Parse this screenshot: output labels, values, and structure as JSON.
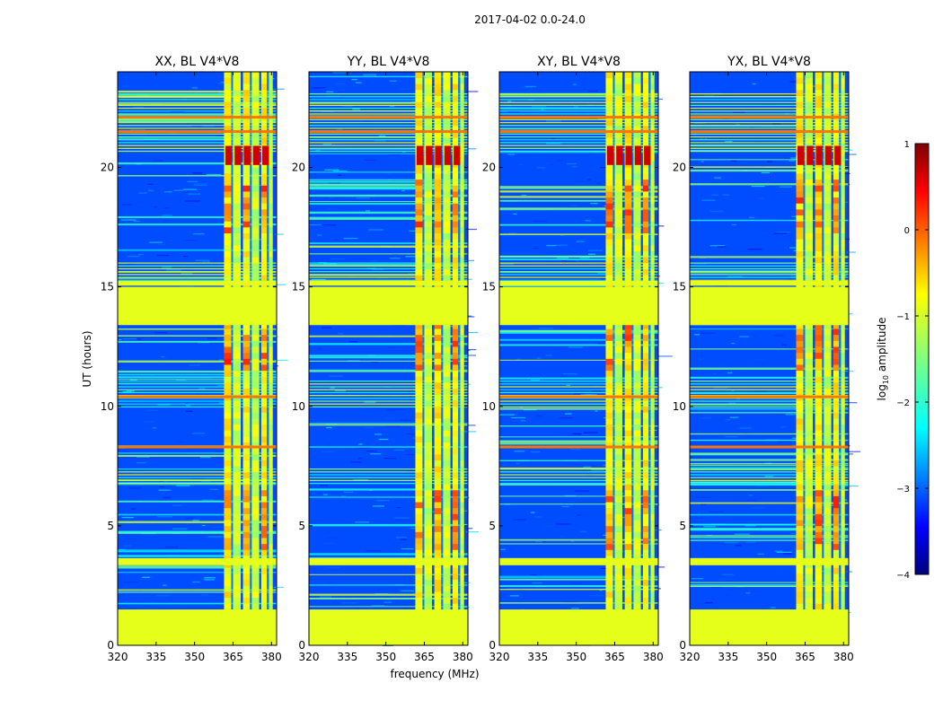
{
  "suptitle": "2017-04-02 0.0-24.0",
  "shared_ylabel": "UT (hours)",
  "shared_xlabel": "frequency (MHz)",
  "colorbar": {
    "label_main": "log",
    "label_sub": "10",
    "label_rest": " amplitude",
    "range": [
      -4,
      1
    ],
    "ticks": [
      1,
      0,
      -1,
      -2,
      -3,
      -4
    ],
    "tick_labels": [
      "1",
      "0",
      "−1",
      "−2",
      "−3",
      "−4"
    ],
    "colormap": "jet"
  },
  "chart_data": [
    {
      "type": "heatmap",
      "title": "XX, BL V4*V8",
      "xlim": [
        320,
        382
      ],
      "ylim": [
        0,
        24
      ],
      "xticks": [
        320,
        335,
        350,
        365,
        380
      ],
      "yticks": [
        0,
        5,
        10,
        15,
        20
      ],
      "xtick_labels": [
        "320",
        "335",
        "350",
        "365",
        "380"
      ],
      "ytick_labels": [
        "0",
        "5",
        "10",
        "15",
        "20"
      ],
      "background_log10_amplitude": -3.0,
      "rfi_band_mhz": [
        361.5,
        380.5
      ],
      "flagged_ut_ranges": [
        [
          0,
          1.5
        ],
        [
          13.4,
          15.0
        ]
      ],
      "flagged_value": -1.0,
      "bright_rows_ut": [
        8.3,
        10.4,
        21.5,
        22.1
      ]
    },
    {
      "type": "heatmap",
      "title": "YY, BL V4*V8",
      "xlim": [
        320,
        382
      ],
      "ylim": [
        0,
        24
      ],
      "xticks": [
        320,
        335,
        350,
        365,
        380
      ],
      "yticks": [
        0,
        5,
        10,
        15,
        20
      ],
      "xtick_labels": [
        "320",
        "335",
        "350",
        "365",
        "380"
      ],
      "ytick_labels": [
        "0",
        "5",
        "10",
        "15",
        "20"
      ],
      "background_log10_amplitude": -3.0,
      "rfi_band_mhz": [
        361.5,
        380.5
      ],
      "flagged_ut_ranges": [
        [
          0,
          1.5
        ],
        [
          13.4,
          15.0
        ]
      ],
      "flagged_value": -1.0,
      "bright_rows_ut": [
        21.5,
        22.1
      ]
    },
    {
      "type": "heatmap",
      "title": "XY, BL V4*V8",
      "xlim": [
        320,
        382
      ],
      "ylim": [
        0,
        24
      ],
      "xticks": [
        320,
        335,
        350,
        365,
        380
      ],
      "yticks": [
        0,
        5,
        10,
        15,
        20
      ],
      "xtick_labels": [
        "320",
        "335",
        "350",
        "365",
        "380"
      ],
      "ytick_labels": [
        "0",
        "5",
        "10",
        "15",
        "20"
      ],
      "background_log10_amplitude": -3.0,
      "rfi_band_mhz": [
        361.5,
        380.5
      ],
      "flagged_ut_ranges": [
        [
          0,
          1.5
        ],
        [
          13.4,
          15.0
        ]
      ],
      "flagged_value": -1.0,
      "bright_rows_ut": [
        8.3,
        10.4,
        21.5,
        22.1
      ]
    },
    {
      "type": "heatmap",
      "title": "YX, BL V4*V8",
      "xlim": [
        320,
        382
      ],
      "ylim": [
        0,
        24
      ],
      "xticks": [
        320,
        335,
        350,
        365,
        380
      ],
      "yticks": [
        0,
        5,
        10,
        15,
        20
      ],
      "xtick_labels": [
        "320",
        "335",
        "350",
        "365",
        "380"
      ],
      "ytick_labels": [
        "0",
        "5",
        "10",
        "15",
        "20"
      ],
      "background_log10_amplitude": -3.0,
      "rfi_band_mhz": [
        361.5,
        380.5
      ],
      "flagged_ut_ranges": [
        [
          0,
          1.5
        ],
        [
          13.4,
          15.0
        ]
      ],
      "flagged_value": -1.0,
      "bright_rows_ut": [
        8.3,
        10.4,
        21.5,
        22.1
      ]
    }
  ]
}
